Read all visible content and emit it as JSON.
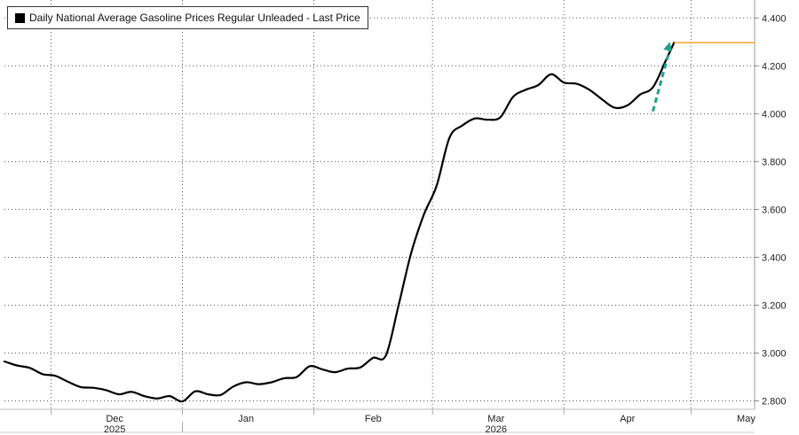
{
  "chart_data": {
    "type": "line",
    "title": "",
    "xlabel": "",
    "ylabel": "",
    "legend": {
      "placement": "top-left",
      "entries": [
        "Daily National Average Gasoline Prices Regular Unleaded - Last Price"
      ]
    },
    "series": [
      {
        "name": "Daily National Average Gasoline Prices Regular Unleaded - Last Price",
        "color": "#000000",
        "x": [
          "2025-11-20",
          "2025-11-23",
          "2025-11-26",
          "2025-11-29",
          "2025-12-02",
          "2025-12-05",
          "2025-12-08",
          "2025-12-11",
          "2025-12-14",
          "2025-12-17",
          "2025-12-20",
          "2025-12-23",
          "2025-12-26",
          "2025-12-29",
          "2026-01-01",
          "2026-01-04",
          "2026-01-07",
          "2026-01-10",
          "2026-01-13",
          "2026-01-16",
          "2026-01-19",
          "2026-01-22",
          "2026-01-25",
          "2026-01-28",
          "2026-01-31",
          "2026-02-03",
          "2026-02-06",
          "2026-02-09",
          "2026-02-12",
          "2026-02-15",
          "2026-02-18",
          "2026-02-21",
          "2026-02-24",
          "2026-02-27",
          "2026-03-02",
          "2026-03-05",
          "2026-03-08",
          "2026-03-11",
          "2026-03-14",
          "2026-03-17",
          "2026-03-20",
          "2026-03-23",
          "2026-03-26",
          "2026-03-29",
          "2026-04-01",
          "2026-04-04",
          "2026-04-07",
          "2026-04-10",
          "2026-04-13",
          "2026-04-16",
          "2026-04-19",
          "2026-04-22",
          "2026-04-25",
          "2026-04-27"
        ],
        "values": [
          2.965,
          2.948,
          2.938,
          2.912,
          2.905,
          2.88,
          2.858,
          2.855,
          2.845,
          2.828,
          2.838,
          2.82,
          2.81,
          2.82,
          2.798,
          2.84,
          2.828,
          2.825,
          2.86,
          2.878,
          2.87,
          2.878,
          2.895,
          2.9,
          2.945,
          2.932,
          2.92,
          2.935,
          2.94,
          2.98,
          2.99,
          3.2,
          3.42,
          3.58,
          3.7,
          3.9,
          3.95,
          3.98,
          3.975,
          3.985,
          4.07,
          4.1,
          4.12,
          4.165,
          4.13,
          4.125,
          4.1,
          4.06,
          4.025,
          4.035,
          4.08,
          4.11,
          4.22,
          4.297
        ]
      }
    ],
    "last_price_line": {
      "value": 4.297,
      "color": "#f5a623"
    },
    "annotation": {
      "type": "dashed-arrow",
      "color": "#1aa38a",
      "from": [
        "2026-04-22",
        4.01
      ],
      "to": [
        "2026-04-26",
        4.3
      ]
    },
    "y_axis": {
      "position": "right",
      "ylim": [
        2.765,
        4.475
      ],
      "ticks": [
        2.8,
        3.0,
        3.2,
        3.4,
        3.6,
        3.8,
        4.0,
        4.2,
        4.4
      ],
      "tick_labels": [
        "2.800",
        "3.000",
        "3.200",
        "3.400",
        "3.600",
        "3.800",
        "4.000",
        "4.200",
        "4.400"
      ]
    },
    "x_axis": {
      "xlim": [
        "2025-11-20",
        "2026-05-16"
      ],
      "month_labels": [
        {
          "label": "Dec",
          "date": "2025-12-16"
        },
        {
          "label": "Jan",
          "date": "2026-01-16"
        },
        {
          "label": "Feb",
          "date": "2026-02-15"
        },
        {
          "label": "Mar",
          "date": "2026-03-16"
        },
        {
          "label": "Apr",
          "date": "2026-04-16"
        },
        {
          "label": "May",
          "date": "2026-05-14"
        }
      ],
      "month_boundaries": [
        "2025-12-01",
        "2026-01-01",
        "2026-02-01",
        "2026-03-01",
        "2026-04-01",
        "2026-05-01"
      ],
      "year_labels": [
        {
          "label": "2025",
          "date": "2025-12-16"
        },
        {
          "label": "2026",
          "date": "2026-03-16"
        }
      ],
      "year_boundary": "2026-01-01"
    },
    "grid": true
  }
}
